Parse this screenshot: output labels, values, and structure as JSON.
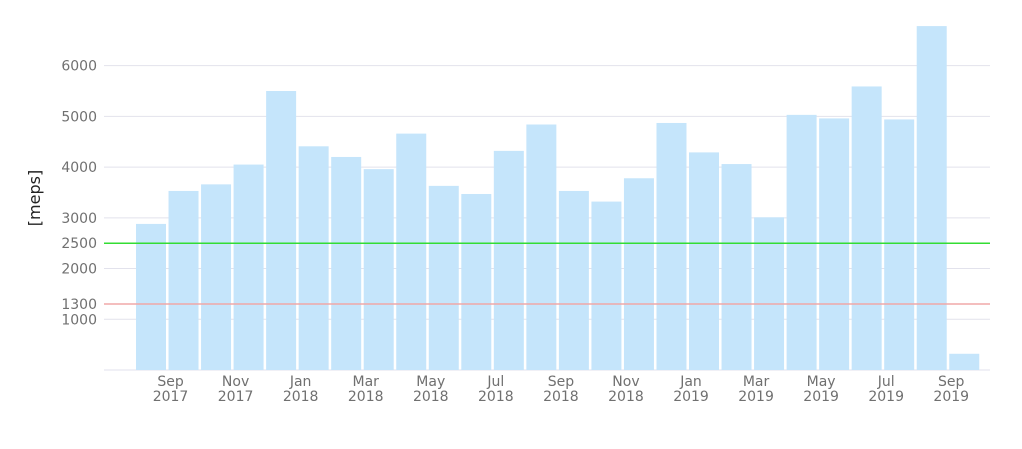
{
  "chart_data": {
    "type": "bar",
    "ylabel": "[meps]",
    "ylim": [
      0,
      6900
    ],
    "grid": true,
    "y_ticks": [
      1000,
      1300,
      2000,
      2500,
      3000,
      4000,
      5000,
      6000
    ],
    "x_tick_labels": [
      {
        "month": "Sep",
        "year": "2017"
      },
      {
        "month": "Nov",
        "year": "2017"
      },
      {
        "month": "Jan",
        "year": "2018"
      },
      {
        "month": "Mar",
        "year": "2018"
      },
      {
        "month": "May",
        "year": "2018"
      },
      {
        "month": "Jul",
        "year": "2018"
      },
      {
        "month": "Sep",
        "year": "2018"
      },
      {
        "month": "Nov",
        "year": "2018"
      },
      {
        "month": "Jan",
        "year": "2019"
      },
      {
        "month": "Mar",
        "year": "2019"
      },
      {
        "month": "May",
        "year": "2019"
      },
      {
        "month": "Jul",
        "year": "2019"
      },
      {
        "month": "Sep",
        "year": "2019"
      }
    ],
    "categories": [
      "2017-08",
      "2017-09",
      "2017-10",
      "2017-11",
      "2017-12",
      "2018-01",
      "2018-02",
      "2018-03",
      "2018-04",
      "2018-05",
      "2018-06",
      "2018-07",
      "2018-08",
      "2018-09",
      "2018-10",
      "2018-11",
      "2018-12",
      "2019-01",
      "2019-02",
      "2019-03",
      "2019-04",
      "2019-05",
      "2019-06",
      "2019-07",
      "2019-08",
      "2019-09"
    ],
    "values": [
      2880,
      3530,
      3660,
      4050,
      5500,
      4410,
      4200,
      3960,
      4660,
      3630,
      3470,
      4320,
      4840,
      3530,
      3320,
      3780,
      4870,
      4290,
      4060,
      3010,
      5030,
      4960,
      5590,
      4940,
      6780,
      320
    ],
    "reference_lines": [
      {
        "value": 2500,
        "color": "#33dd33"
      },
      {
        "value": 1300,
        "color": "#f0a8a8"
      }
    ],
    "colors": {
      "bar": "#c5e5fb",
      "grid": "#e2e2ec",
      "tick_text": "#707070"
    }
  }
}
